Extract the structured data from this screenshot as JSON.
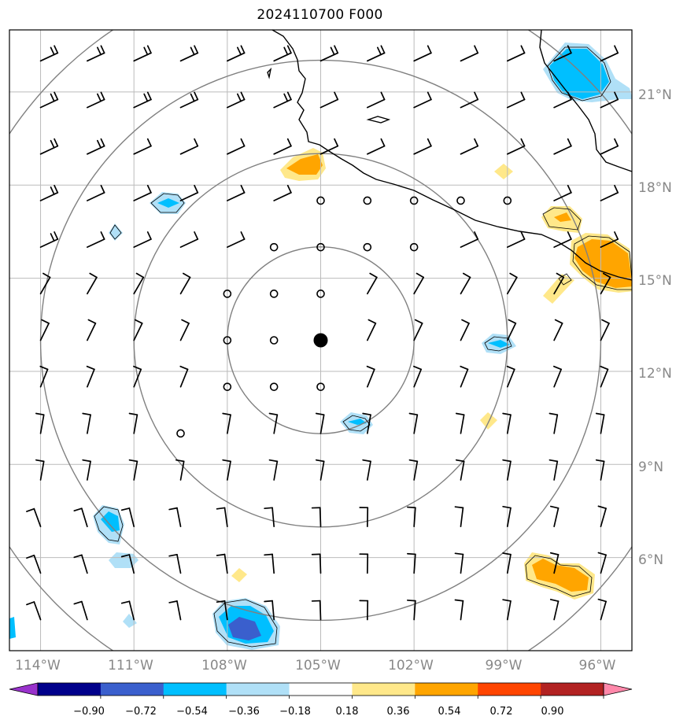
{
  "title": "2024110700 F000",
  "map": {
    "lon_range": [
      -115,
      -95
    ],
    "lat_range": [
      3,
      23
    ],
    "center": {
      "lon": -105,
      "lat": 13
    },
    "range_ring_radii_deg": [
      3,
      6,
      9,
      12
    ],
    "colors": {
      "coast": "#000000",
      "grid": "#bbbbbb",
      "rings": "#808080",
      "tick_labels": "#888888"
    }
  },
  "lat_labels": [
    "21°N",
    "18°N",
    "15°N",
    "12°N",
    "9°N",
    "6°N"
  ],
  "lon_labels": [
    "114°W",
    "111°W",
    "108°W",
    "105°W",
    "102°W",
    "99°W",
    "96°W"
  ],
  "colorbar": {
    "labels": [
      "−0.90",
      "−0.72",
      "−0.54",
      "−0.36",
      "−0.18",
      "0.18",
      "0.36",
      "0.54",
      "0.72",
      "0.90"
    ],
    "colors": [
      "#9932cc",
      "#00008b",
      "#3a5fcd",
      "#00bfff",
      "#b0e0f7",
      "#ffffff",
      "#ffe88a",
      "#ffa500",
      "#ff4500",
      "#b22222",
      "#ff88aa"
    ]
  },
  "contour_fill_colors": {
    "light_blue": "#b0e0f7",
    "blue": "#00bfff",
    "dark_blue": "#3a5fcd",
    "light_yellow": "#ffe88a",
    "orange": "#ffa500"
  },
  "wind_barb_rows": [
    {
      "lat": 22,
      "barbs": "2,2,2,2,2,2,2,2,1,1,1,1,1,1"
    },
    {
      "lat": 20.5,
      "barbs": "2,2,2,2,2,2,1,1,1,1,1,1,1,1"
    },
    {
      "lat": 19,
      "barbs": "2,2,1,1,1,1,1,1,1,1,1,1,1,1"
    },
    {
      "lat": 17.5,
      "barbs": "2,1,1,1,1,1,0,0,0,0,0,1,1,1"
    },
    {
      "lat": 16,
      "barbs": "2,1,1,1,1,0,0,0,0,1,1,1,1,1"
    },
    {
      "lat": 14.5,
      "barbs": "1,1,1,1,0,0,0,1,1,1,1,1,1,1"
    },
    {
      "lat": 13,
      "barbs": "1,1,1,1,0,0,0,1,1,1,1,1,1,1"
    },
    {
      "lat": 11.5,
      "barbs": "1,1,1,1,0,0,0,1,1,1,1,1,1,1"
    },
    {
      "lat": 10,
      "barbs": "1,1,1,0,1,1,1,1,1,1,1,1,1,1"
    },
    {
      "lat": 8.5,
      "barbs": "1,1,1,1,1,1,1,1,1,1,1,1,1,1"
    },
    {
      "lat": 7,
      "barbs": "1,1,1,1,1,1,1,1,1,1,1,1,1,1"
    },
    {
      "lat": 5.5,
      "barbs": "1,1,1,1,1,1,1,1,1,1,1,1,1,1"
    },
    {
      "lat": 4,
      "barbs": "1,1,1,1,1,1,1,1,1,1,1,1,1,1"
    }
  ]
}
